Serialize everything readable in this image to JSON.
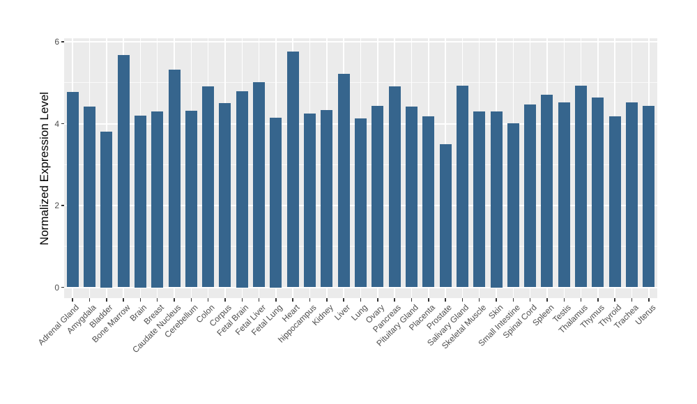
{
  "chart_data": {
    "type": "bar",
    "title": "",
    "xlabel": "",
    "ylabel": "Normalized Expression Level",
    "categories": [
      "Adrenal Gland",
      "Amygdala",
      "Bladder",
      "Bone Marrow",
      "Brain",
      "Breast",
      "Caudate Nucleus",
      "Cerebellum",
      "Colon",
      "Corpus",
      "Fetal Brain",
      "Fetal Liver",
      "Fetal Lung",
      "Heart",
      "hippocampus",
      "Kidney",
      "Liver",
      "Lung",
      "Ovary",
      "Pancreas",
      "Pituitary Gland",
      "Placenta",
      "Prostate",
      "Salivary Gland",
      "Skeletal Muscle",
      "Skin",
      "Small Intestine",
      "Spinal Cord",
      "Spleen",
      "Testis",
      "Thalamus",
      "Thymus",
      "Thyroid",
      "Trachea",
      "Uterus"
    ],
    "values": [
      4.77,
      4.42,
      3.8,
      5.67,
      4.2,
      4.3,
      5.32,
      4.31,
      4.91,
      4.51,
      4.8,
      5.02,
      4.15,
      5.77,
      4.24,
      4.34,
      5.22,
      4.12,
      4.44,
      4.91,
      4.42,
      4.18,
      3.49,
      4.93,
      4.29,
      4.3,
      4.01,
      4.47,
      4.71,
      4.52,
      4.92,
      4.63,
      4.18,
      4.52,
      4.44
    ],
    "yticks": [
      0,
      2,
      4,
      6
    ],
    "minor_yticks": [
      1,
      3,
      5
    ],
    "ylim": [
      -0.29,
      6.06
    ],
    "x_label_rotation_deg": 45,
    "grid": true,
    "legend": "none",
    "colors": {
      "bar_fill": "#36658D",
      "panel_background": "#EBEBEB",
      "gridline": "#FFFFFF",
      "axis_text": "#4D4D4D",
      "axis_title": "#000000",
      "tick_mark": "#333333",
      "figure_background": "#FFFFFF"
    }
  }
}
